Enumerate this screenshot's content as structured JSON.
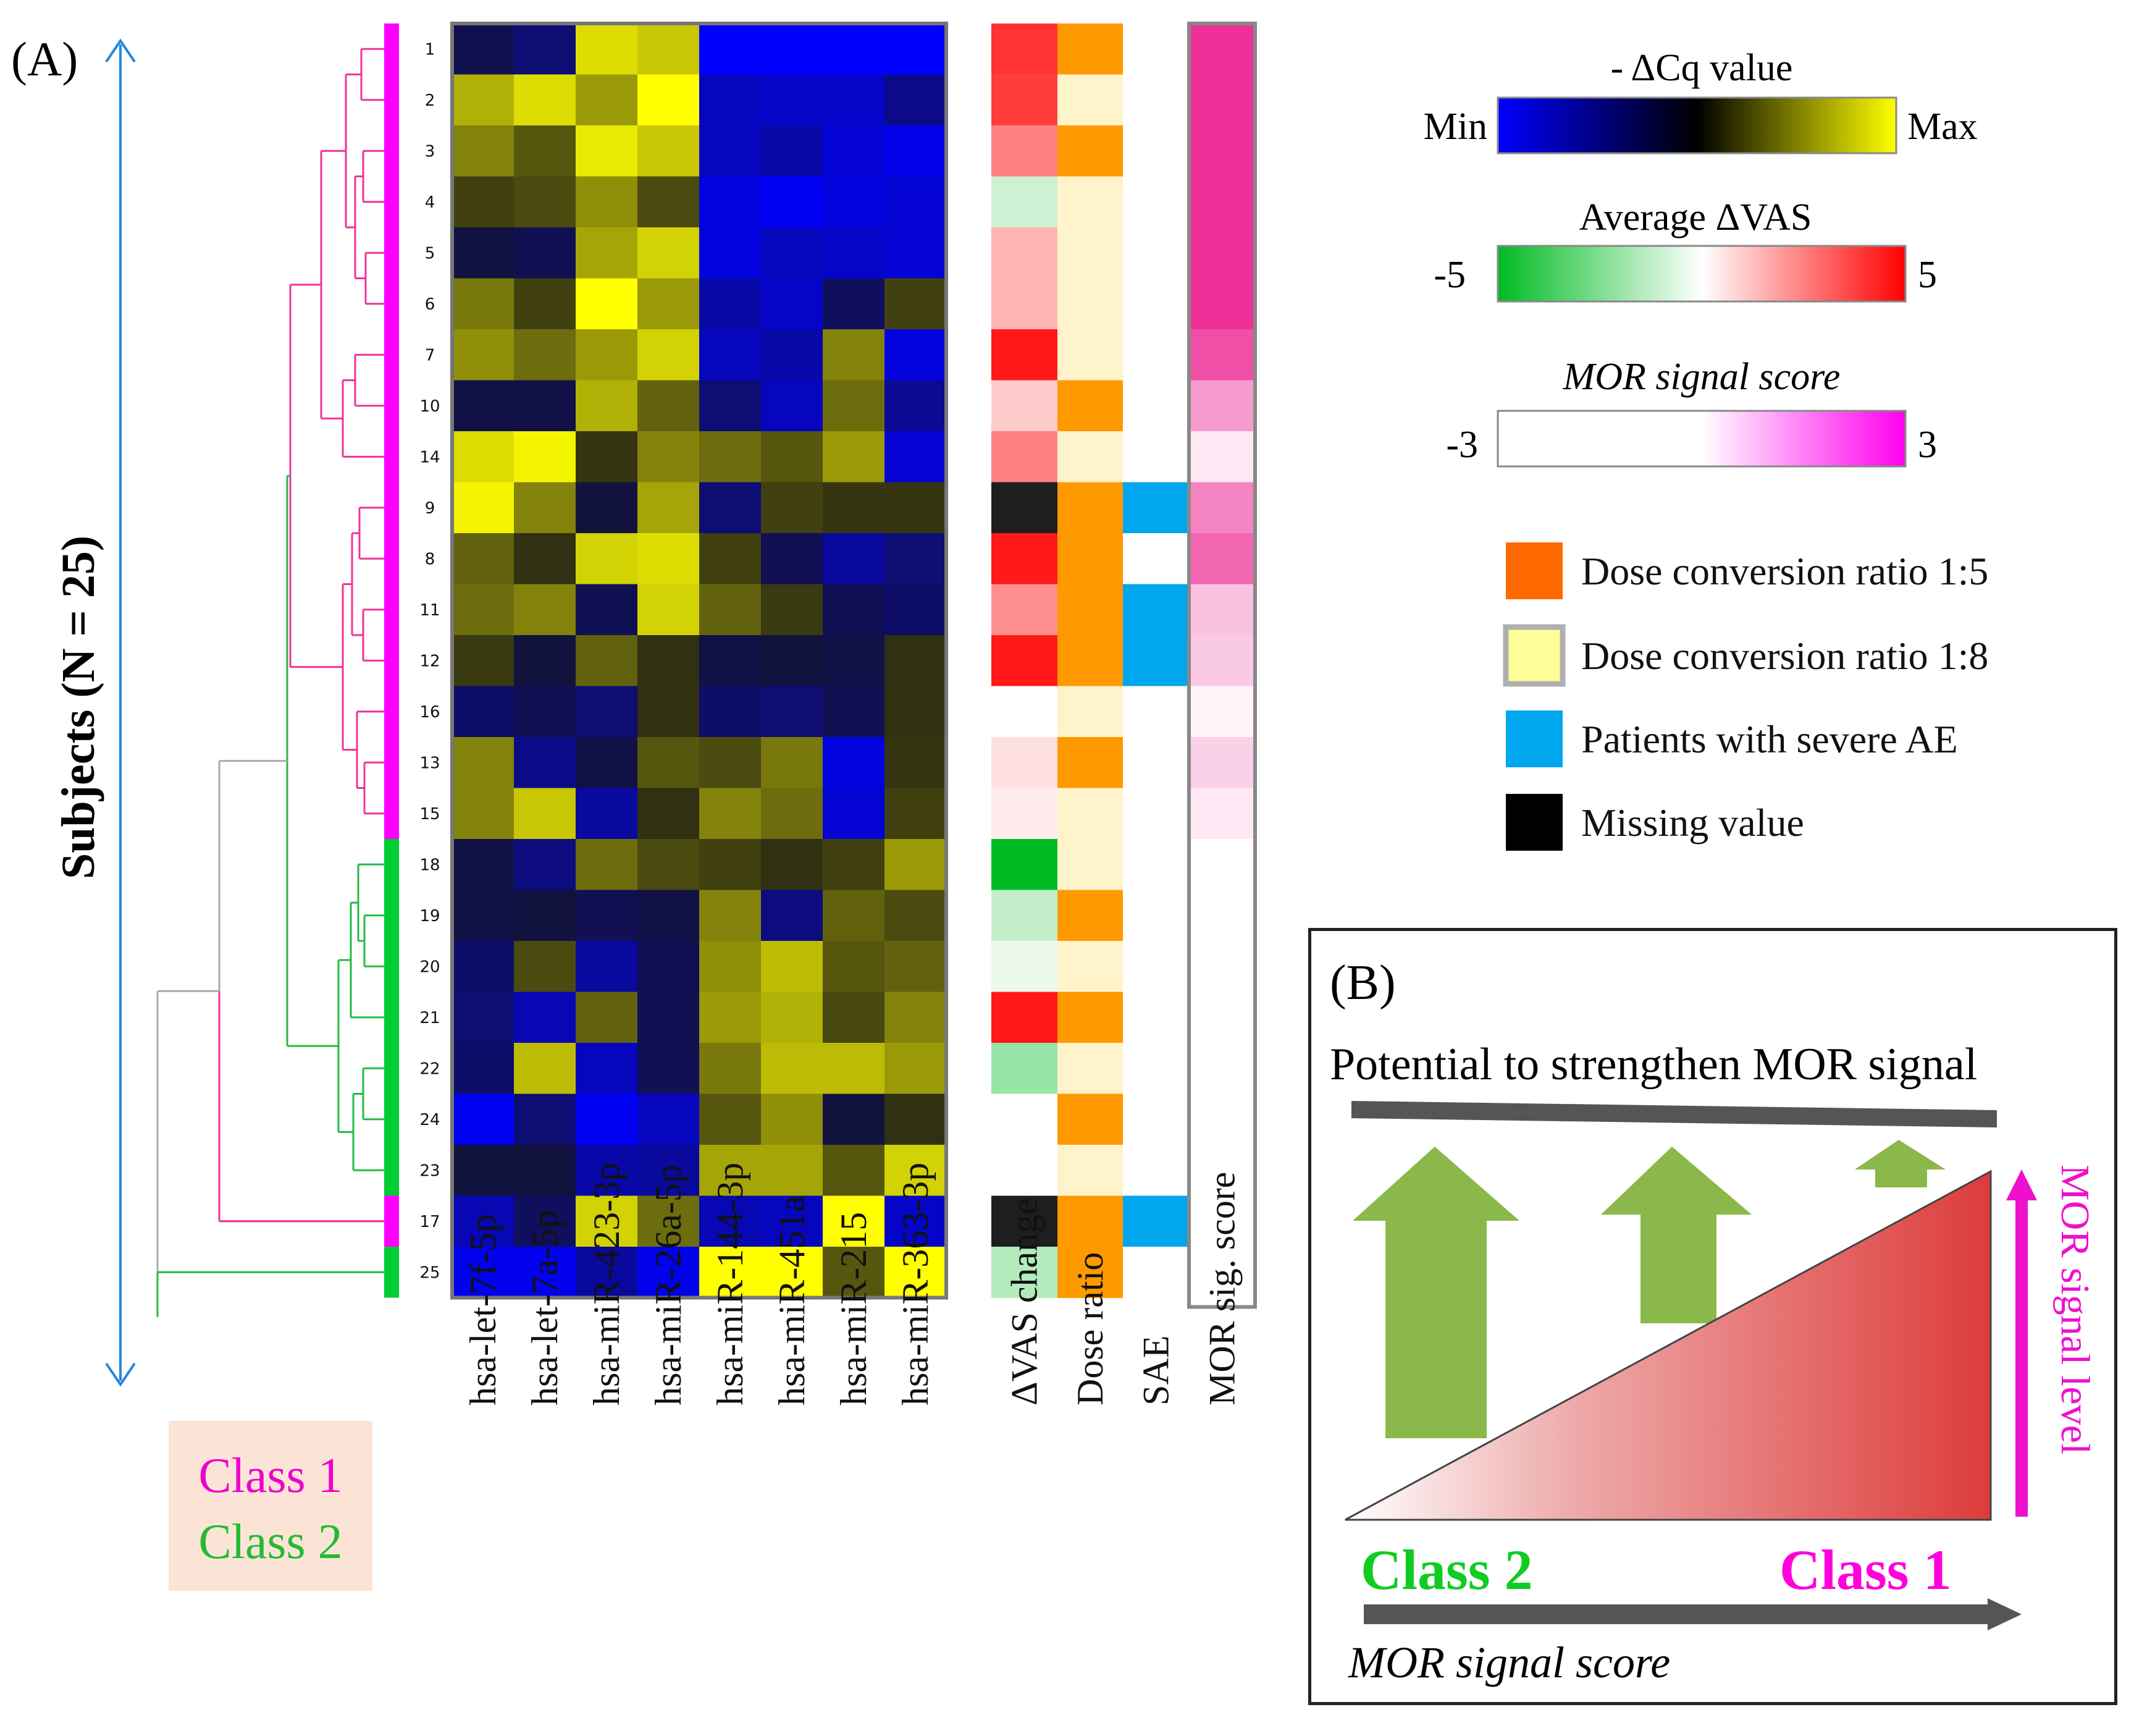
{
  "panel_a_label": "(A)",
  "panel_b_label": "(B)",
  "axis": {
    "subjects_label": "Subjects (N = 25)"
  },
  "class_legend": {
    "class1": "Class 1",
    "class2": "Class 2"
  },
  "colors": {
    "class1": "#ff00ff",
    "class2": "#00cc33",
    "dendro_pink": "#ee3399",
    "dendro_green": "#22bb44",
    "dendro_gray": "#aaaaaa",
    "arrow_blue": "#2288dd",
    "dose_1_5": "#ff9900",
    "dose_1_8": "#fff3cc",
    "sae": "#00a6ee",
    "missing": "#1e1e1e",
    "bar_gray": "#555555",
    "up_arrow_green": "#8ab84a",
    "mor_magenta": "#ee11cc",
    "class1_text": "#ff00dd",
    "class2_text": "#11cc22"
  },
  "legend": {
    "dcq": {
      "title": "- ΔCq value",
      "min": "Min",
      "max": "Max"
    },
    "vas": {
      "title": "Average ΔVAS",
      "min": "-5",
      "max": "5"
    },
    "mor": {
      "title": "MOR signal score",
      "min": "-3",
      "max": "3"
    },
    "categorical": [
      {
        "label": "Dose conversion ratio 1:5",
        "swatch": "#ff6a00",
        "border": "none"
      },
      {
        "label": "Dose conversion ratio 1:8",
        "swatch": "#ffff99",
        "border": "#b0b0b0"
      },
      {
        "label": "Patients with severe AE",
        "swatch": "#00a6ee",
        "border": "none"
      },
      {
        "label": "Missing value",
        "swatch": "#000000",
        "border": "none"
      }
    ]
  },
  "chart_data": {
    "type": "heatmap",
    "row_labels": [
      "1",
      "2",
      "3",
      "4",
      "5",
      "6",
      "7",
      "10",
      "14",
      "9",
      "8",
      "11",
      "12",
      "16",
      "13",
      "15",
      "18",
      "19",
      "20",
      "21",
      "22",
      "24",
      "23",
      "17",
      "25"
    ],
    "row_class": [
      1,
      1,
      1,
      1,
      1,
      1,
      1,
      1,
      1,
      1,
      1,
      1,
      1,
      1,
      1,
      1,
      2,
      2,
      2,
      2,
      2,
      2,
      2,
      1,
      2
    ],
    "mirna_columns": [
      "hsa-let-7f-5p",
      "hsa-let-7a-5p",
      "hsa-miR-423-3p",
      "hsa-miR-26a-5p",
      "hsa-miR-144-3p",
      "hsa-miR-451a",
      "hsa-miR-215",
      "hsa-miR-363-3p"
    ],
    "dcq_scale": "value in [-1,1]: -1 = Min (blue), 0 = black, 1 = Max (yellow)",
    "dcq_values": [
      [
        -0.18,
        -0.35,
        0.85,
        0.75,
        -1,
        -1,
        -1,
        -1
      ],
      [
        0.65,
        0.85,
        0.55,
        1.0,
        -0.7,
        -0.75,
        -0.75,
        -0.45
      ],
      [
        0.45,
        0.25,
        0.9,
        0.75,
        -0.7,
        -0.6,
        -0.8,
        -0.9
      ],
      [
        0.15,
        0.2,
        0.5,
        0.2,
        -0.85,
        -0.95,
        -0.85,
        -0.8
      ],
      [
        -0.12,
        -0.2,
        0.6,
        0.8,
        -0.85,
        -0.7,
        -0.75,
        -0.8
      ],
      [
        0.4,
        0.15,
        1.0,
        0.55,
        -0.6,
        -0.75,
        -0.25,
        0.15
      ],
      [
        0.5,
        0.35,
        0.55,
        0.8,
        -0.7,
        -0.6,
        0.45,
        -0.85
      ],
      [
        -0.15,
        -0.15,
        0.65,
        0.3,
        -0.35,
        -0.7,
        0.35,
        -0.5
      ],
      [
        0.85,
        0.95,
        0.1,
        0.45,
        0.35,
        0.25,
        0.55,
        -0.8
      ],
      [
        0.95,
        0.45,
        -0.1,
        0.6,
        -0.35,
        0.15,
        0.1,
        0.1
      ],
      [
        0.3,
        0.08,
        0.8,
        0.85,
        0.15,
        -0.2,
        -0.55,
        -0.35
      ],
      [
        0.35,
        0.45,
        -0.2,
        0.8,
        0.3,
        0.12,
        -0.2,
        -0.3
      ],
      [
        0.12,
        -0.1,
        0.3,
        0.08,
        -0.15,
        -0.1,
        -0.15,
        0.08
      ],
      [
        -0.3,
        -0.2,
        -0.35,
        0.08,
        -0.3,
        -0.35,
        -0.2,
        0.08
      ],
      [
        0.45,
        -0.45,
        -0.15,
        0.25,
        0.2,
        0.4,
        -0.85,
        0.1
      ],
      [
        0.45,
        0.75,
        -0.55,
        0.08,
        0.45,
        0.35,
        -0.8,
        0.15
      ],
      [
        -0.15,
        -0.4,
        0.35,
        0.2,
        0.15,
        0.08,
        0.15,
        0.55
      ],
      [
        -0.15,
        -0.1,
        -0.2,
        -0.15,
        0.45,
        -0.4,
        0.3,
        0.2
      ],
      [
        -0.3,
        0.2,
        -0.55,
        -0.2,
        0.5,
        0.7,
        0.25,
        0.3
      ],
      [
        -0.35,
        -0.65,
        0.3,
        -0.2,
        0.55,
        0.65,
        0.18,
        0.45
      ],
      [
        -0.3,
        0.7,
        -0.7,
        -0.2,
        0.4,
        0.7,
        0.7,
        0.55
      ],
      [
        -0.95,
        -0.35,
        -0.95,
        -0.7,
        0.25,
        0.5,
        -0.1,
        0.08
      ],
      [
        -0.1,
        -0.1,
        -0.6,
        -0.55,
        0.6,
        0.6,
        0.25,
        0.8
      ],
      [
        -0.65,
        -0.25,
        0.8,
        0.35,
        -0.65,
        -0.7,
        1.0,
        -0.75
      ],
      [
        -0.92,
        -0.92,
        -0.55,
        -0.9,
        1.0,
        1.0,
        0.25,
        1.0
      ]
    ],
    "annotation_columns": [
      "ΔVAS change",
      "Dose ratio",
      "SAE",
      "MOR sig. score"
    ],
    "dvas_change": [
      4,
      3.8,
      2.5,
      -1,
      1.5,
      1.5,
      4.5,
      1,
      2.5,
      null,
      4.5,
      2.2,
      4.5,
      0,
      0.6,
      0.4,
      -5,
      -1.2,
      -0.4,
      4.5,
      -2,
      0,
      0,
      null,
      -1.5
    ],
    "dose_ratio": [
      "1:5",
      "1:8",
      "1:5",
      "1:8",
      "1:8",
      "1:8",
      "1:8",
      "1:5",
      "1:8",
      "1:5",
      "1:5",
      "1:5",
      "1:5",
      "1:8",
      "1:5",
      "1:8",
      "1:8",
      "1:5",
      "1:8",
      "1:5",
      "1:8",
      "1:5",
      "1:8",
      "1:5",
      "1:5"
    ],
    "sae": [
      false,
      false,
      false,
      false,
      false,
      false,
      false,
      false,
      false,
      true,
      false,
      true,
      true,
      false,
      false,
      false,
      false,
      false,
      false,
      false,
      false,
      false,
      false,
      true,
      false
    ],
    "mor_sig_score": [
      2.7,
      2.7,
      2.7,
      2.7,
      2.7,
      2.7,
      2.3,
      1.3,
      0.3,
      1.6,
      2.0,
      0.8,
      0.7,
      0.15,
      0.6,
      0.3,
      0,
      0,
      0,
      0,
      0,
      0,
      0,
      0,
      0
    ]
  },
  "panel_b": {
    "title": "Potential to strengthen MOR signal",
    "class2": "Class 2",
    "class1": "Class 1",
    "x_label": "MOR signal score",
    "y_label": "MOR signal level"
  }
}
